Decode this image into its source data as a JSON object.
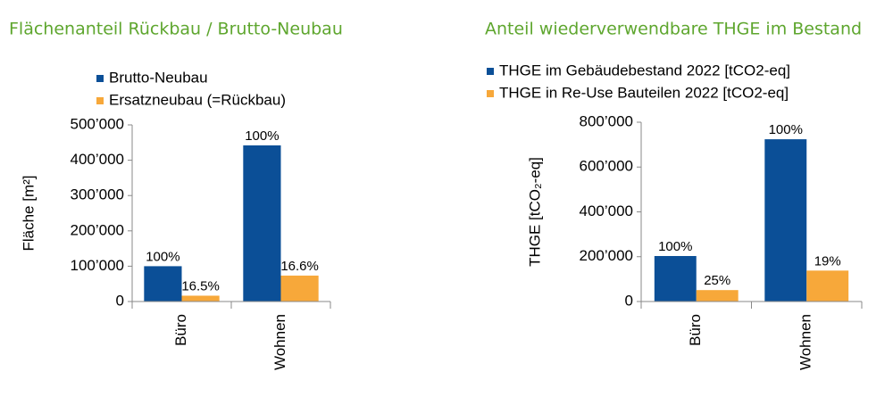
{
  "chart_data": [
    {
      "type": "bar",
      "title": "Flächenanteil Rückbau / Brutto-Neubau",
      "y_label": "Fläche [m²]",
      "categories": [
        "Büro",
        "Wohnen"
      ],
      "series": [
        {
          "name": "Brutto-Neubau",
          "color": "#0b4f97",
          "values": [
            100000,
            442000
          ],
          "labels": [
            "100%",
            "100%"
          ]
        },
        {
          "name": "Ersatzneubau (=Rückbau)",
          "color": "#f7a83a",
          "values": [
            16500,
            73400
          ],
          "labels": [
            "16.5%",
            "16.6%"
          ]
        }
      ],
      "ylim": [
        0,
        500000
      ],
      "yticks": [
        0,
        {
          "value": 100000,
          "label": "100’000"
        },
        {
          "value": 200000,
          "label": "200’000"
        },
        {
          "value": 300000,
          "label": "300’000"
        },
        {
          "value": 400000,
          "label": "400’000"
        },
        {
          "value": 500000,
          "label": "500’000"
        }
      ]
    },
    {
      "type": "bar",
      "title": "Anteil wiederverwendbare THGE im Bestand",
      "y_label": "THGE [tCO₂-eq]",
      "categories": [
        "Büro",
        "Wohnen"
      ],
      "series": [
        {
          "name": "THGE im Gebäudebestand 2022 [tCO2-eq]",
          "color": "#0b4f97",
          "values": [
            203000,
            724000
          ],
          "labels": [
            "100%",
            "100%"
          ]
        },
        {
          "name": "THGE in Re-Use Bauteilen 2022 [tCO2-eq]",
          "color": "#f7a83a",
          "values": [
            51000,
            138000
          ],
          "labels": [
            "25%",
            "19%"
          ]
        }
      ],
      "ylim": [
        0,
        800000
      ],
      "yticks": [
        0,
        {
          "value": 200000,
          "label": "200’000"
        },
        {
          "value": 400000,
          "label": "400’000"
        },
        {
          "value": 600000,
          "label": "600’000"
        },
        {
          "value": 800000,
          "label": "800’000"
        }
      ]
    }
  ]
}
